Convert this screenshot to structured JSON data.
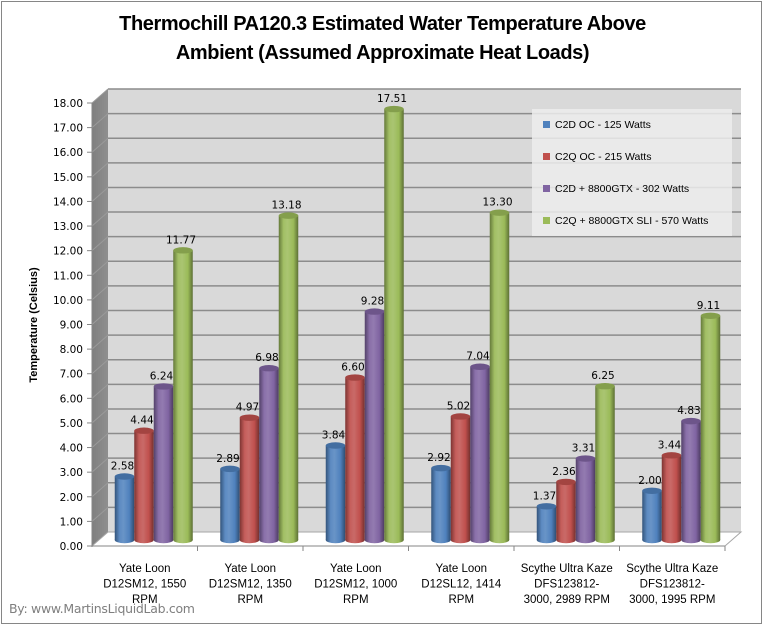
{
  "chart_data": {
    "type": "bar",
    "style": "3d-cylinder-clustered",
    "title": "Thermochill PA120.3 Estimated Water Temperature Above Ambient (Assumed Approximate Heat Loads)",
    "title_lines": [
      "Thermochill PA120.3 Estimated Water Temperature Above",
      "Ambient (Assumed Approximate Heat Loads)"
    ],
    "xlabel": "",
    "ylabel": "Temperature (Celsius)",
    "ylim": [
      0,
      18
    ],
    "ytick_step": 1,
    "ytick_labels": [
      "0.00",
      "1.00",
      "2.00",
      "3.00",
      "4.00",
      "5.00",
      "6.00",
      "7.00",
      "8.00",
      "9.00",
      "10.00",
      "11.00",
      "12.00",
      "13.00",
      "14.00",
      "15.00",
      "16.00",
      "17.00",
      "18.00"
    ],
    "grid": true,
    "legend_position": "top-right",
    "categories": [
      "Yate Loon D12SM12, 1550 RPM",
      "Yate Loon D12SM12, 1350 RPM",
      "Yate Loon D12SM12, 1000 RPM",
      "Yate Loon D12SL12, 1414 RPM",
      "Scythe Ultra Kaze DFS123812-3000, 2989 RPM",
      "Scythe Ultra Kaze DFS123812-3000, 1995 RPM"
    ],
    "category_label_lines": [
      [
        "Yate Loon",
        "D12SM12, 1550",
        "RPM"
      ],
      [
        "Yate Loon",
        "D12SM12, 1350",
        "RPM"
      ],
      [
        "Yate Loon",
        "D12SM12, 1000",
        "RPM"
      ],
      [
        "Yate Loon",
        "D12SL12, 1414",
        "RPM"
      ],
      [
        "Scythe Ultra Kaze",
        "DFS123812-",
        "3000, 2989 RPM"
      ],
      [
        "Scythe Ultra Kaze",
        "DFS123812-",
        "3000, 1995 RPM"
      ]
    ],
    "series": [
      {
        "name": "C2D OC - 125 Watts",
        "color": "#4f81bd",
        "values": [
          2.58,
          2.89,
          3.84,
          2.92,
          1.37,
          2.0
        ]
      },
      {
        "name": "C2Q OC - 215 Watts",
        "color": "#c0504d",
        "values": [
          4.44,
          4.97,
          6.6,
          5.02,
          2.36,
          3.44
        ]
      },
      {
        "name": "C2D + 8800GTX - 302 Watts",
        "color": "#8064a2",
        "values": [
          6.24,
          6.98,
          9.28,
          7.04,
          3.31,
          4.83
        ]
      },
      {
        "name": "C2Q + 8800GTX SLI - 570 Watts",
        "color": "#9bbb59",
        "values": [
          11.77,
          13.18,
          17.51,
          13.3,
          6.25,
          9.11
        ]
      }
    ],
    "data_labels": true,
    "value_format": "0.00"
  },
  "credit": "By: www.MartinsLiquidLab.com"
}
